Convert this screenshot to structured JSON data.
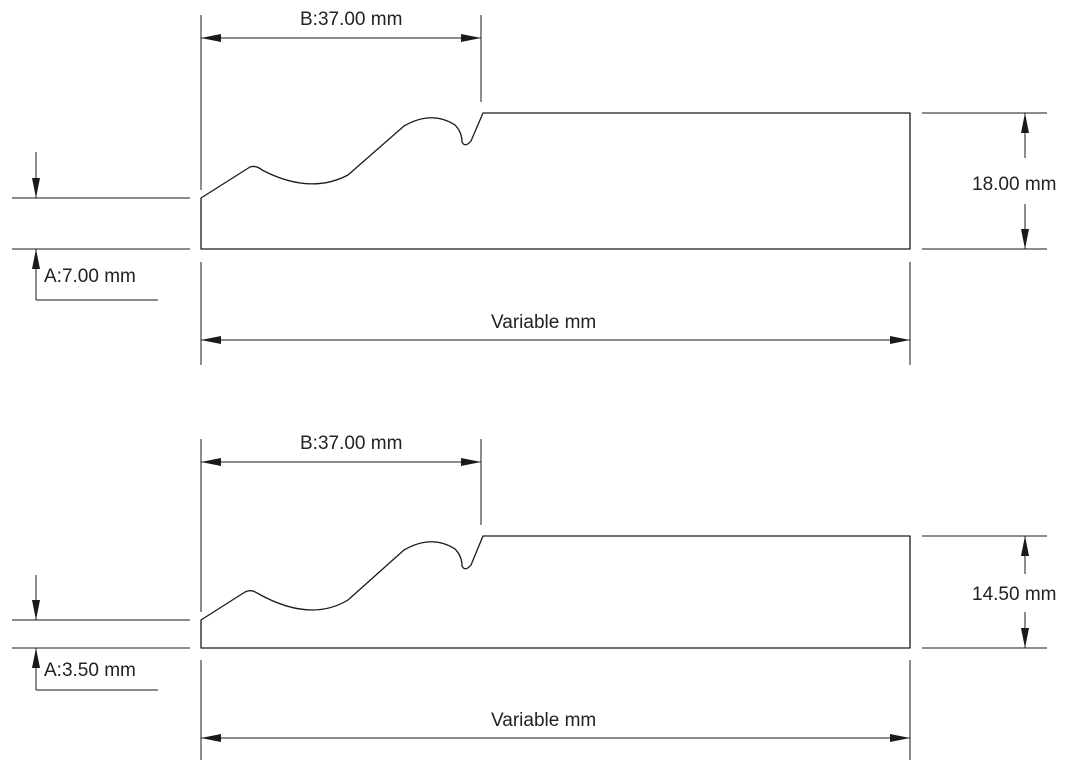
{
  "drawings": [
    {
      "name": "profile-18mm",
      "b_label": "B:37.00 mm",
      "a_label": "A:7.00 mm",
      "height_label": "18.00 mm",
      "length_label": "Variable mm"
    },
    {
      "name": "profile-14-5mm",
      "b_label": "B:37.00 mm",
      "a_label": "A:3.50 mm",
      "height_label": "14.50 mm",
      "length_label": "Variable mm"
    }
  ],
  "colors": {
    "line": "#1a1a1a",
    "text": "#222222",
    "background": "#ffffff"
  }
}
